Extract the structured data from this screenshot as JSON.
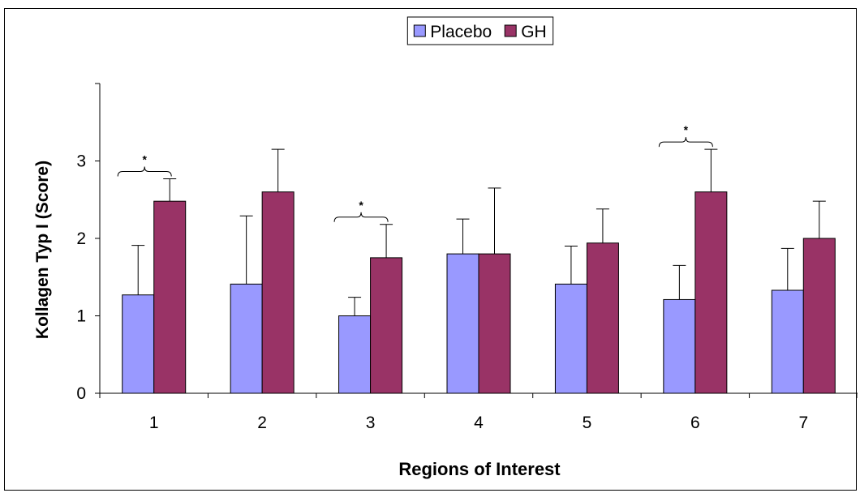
{
  "chart_data": {
    "type": "bar",
    "xlabel": "Regions of Interest",
    "ylabel": "Kollagen Typ I (Score)",
    "ylim": [
      0,
      4
    ],
    "yticks": [
      0,
      1,
      2,
      3
    ],
    "categories": [
      "1",
      "2",
      "3",
      "4",
      "5",
      "6",
      "7"
    ],
    "series": [
      {
        "name": "Placebo",
        "color": "#9999ff",
        "values": [
          1.27,
          1.41,
          1.0,
          1.8,
          1.41,
          1.21,
          1.33
        ],
        "error": [
          0.64,
          0.88,
          0.24,
          0.45,
          0.49,
          0.44,
          0.54
        ]
      },
      {
        "name": "GH",
        "color": "#993366",
        "values": [
          2.48,
          2.6,
          1.75,
          1.8,
          1.94,
          2.6,
          2.0
        ],
        "error": [
          0.29,
          0.55,
          0.43,
          0.85,
          0.44,
          0.55,
          0.48
        ]
      }
    ],
    "significance": [
      {
        "category": "1",
        "label": "*"
      },
      {
        "category": "3",
        "label": "*"
      },
      {
        "category": "6",
        "label": "*"
      }
    ],
    "legend": "top-center",
    "grid": false
  }
}
